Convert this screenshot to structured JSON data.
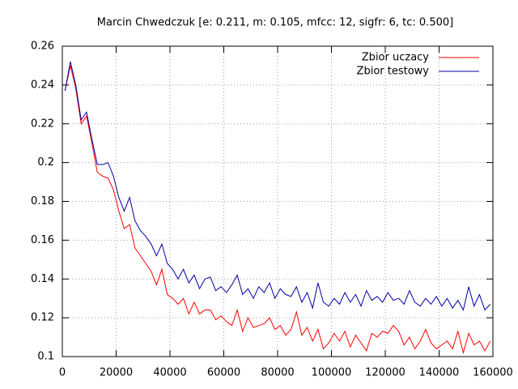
{
  "chart_data": {
    "type": "line",
    "title": "Marcin Chwedczuk [e: 0.211, m: 0.105, mfcc: 12, sigfr: 6, tc: 0.500]",
    "x": [
      1000,
      3000,
      5000,
      7000,
      9000,
      11000,
      13000,
      15000,
      17000,
      19000,
      21000,
      23000,
      25000,
      27000,
      29000,
      31000,
      33000,
      35000,
      37000,
      39000,
      41000,
      43000,
      45000,
      47000,
      49000,
      51000,
      53000,
      55000,
      57000,
      59000,
      61000,
      63000,
      65000,
      67000,
      69000,
      71000,
      73000,
      75000,
      77000,
      79000,
      81000,
      83000,
      85000,
      87000,
      89000,
      91000,
      93000,
      95000,
      97000,
      99000,
      101000,
      103000,
      105000,
      107000,
      109000,
      111000,
      113000,
      115000,
      117000,
      119000,
      121000,
      123000,
      125000,
      127000,
      129000,
      131000,
      133000,
      135000,
      137000,
      139000,
      141000,
      143000,
      145000,
      147000,
      149000,
      151000,
      153000,
      155000,
      157000,
      159000
    ],
    "series": [
      {
        "name": "Zbior uczacy",
        "color": "#ff0000",
        "values": [
          0.237,
          0.25,
          0.238,
          0.22,
          0.224,
          0.21,
          0.195,
          0.193,
          0.192,
          0.186,
          0.175,
          0.166,
          0.168,
          0.156,
          0.152,
          0.148,
          0.144,
          0.137,
          0.145,
          0.132,
          0.13,
          0.127,
          0.13,
          0.122,
          0.128,
          0.122,
          0.124,
          0.124,
          0.119,
          0.121,
          0.118,
          0.116,
          0.124,
          0.113,
          0.12,
          0.115,
          0.116,
          0.117,
          0.12,
          0.114,
          0.116,
          0.111,
          0.114,
          0.123,
          0.111,
          0.115,
          0.108,
          0.114,
          0.104,
          0.107,
          0.112,
          0.108,
          0.113,
          0.105,
          0.111,
          0.107,
          0.103,
          0.112,
          0.11,
          0.113,
          0.112,
          0.116,
          0.113,
          0.106,
          0.11,
          0.104,
          0.108,
          0.114,
          0.107,
          0.104,
          0.106,
          0.108,
          0.104,
          0.113,
          0.102,
          0.112,
          0.106,
          0.108,
          0.103,
          0.108
        ]
      },
      {
        "name": "Zbior testowy",
        "color": "#0000a0",
        "values": [
          0.237,
          0.252,
          0.24,
          0.222,
          0.226,
          0.212,
          0.199,
          0.199,
          0.2,
          0.193,
          0.182,
          0.175,
          0.182,
          0.17,
          0.165,
          0.162,
          0.158,
          0.152,
          0.158,
          0.148,
          0.145,
          0.14,
          0.145,
          0.138,
          0.142,
          0.135,
          0.14,
          0.141,
          0.134,
          0.136,
          0.133,
          0.137,
          0.142,
          0.132,
          0.135,
          0.13,
          0.136,
          0.133,
          0.138,
          0.13,
          0.135,
          0.132,
          0.131,
          0.136,
          0.128,
          0.133,
          0.125,
          0.138,
          0.128,
          0.126,
          0.13,
          0.127,
          0.133,
          0.128,
          0.132,
          0.126,
          0.134,
          0.129,
          0.131,
          0.128,
          0.133,
          0.129,
          0.13,
          0.127,
          0.134,
          0.128,
          0.126,
          0.13,
          0.127,
          0.131,
          0.126,
          0.13,
          0.125,
          0.129,
          0.124,
          0.136,
          0.126,
          0.132,
          0.124,
          0.127
        ]
      }
    ],
    "xlim": [
      0,
      160000
    ],
    "xticks": [
      0,
      20000,
      40000,
      60000,
      80000,
      100000,
      120000,
      140000,
      160000
    ],
    "ylim": [
      0.1,
      0.26
    ],
    "yticks": [
      0.1,
      0.12,
      0.14,
      0.16,
      0.18,
      0.2,
      0.22,
      0.24,
      0.26
    ],
    "grid": true,
    "legend": "top-right"
  }
}
